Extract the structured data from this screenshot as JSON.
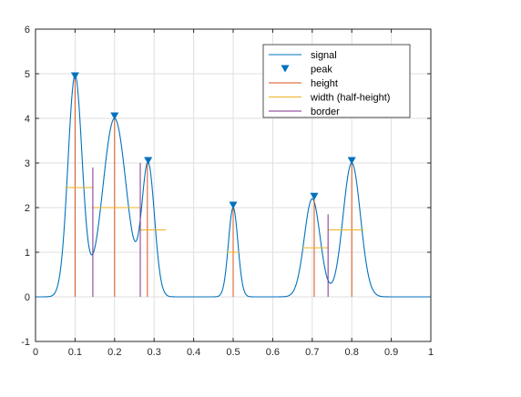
{
  "chart_data": {
    "type": "line",
    "title": "",
    "xlabel": "",
    "ylabel": "",
    "xlim": [
      0,
      1
    ],
    "ylim": [
      -1,
      6
    ],
    "xticks": [
      0,
      0.1,
      0.2,
      0.3,
      0.4,
      0.5,
      0.6,
      0.7,
      0.8,
      0.9,
      1
    ],
    "xtick_labels": [
      "0",
      "0.1",
      "0.2",
      "0.3",
      "0.4",
      "0.5",
      "0.6",
      "0.7",
      "0.8",
      "0.9",
      "1"
    ],
    "yticks": [
      -1,
      0,
      1,
      2,
      3,
      4,
      5,
      6
    ],
    "ytick_labels": [
      "-1",
      "0",
      "1",
      "2",
      "3",
      "4",
      "5",
      "6"
    ],
    "grid": true,
    "legend_position": "top-right",
    "legend": [
      {
        "label": "signal",
        "kind": "line",
        "color": "#0072BD"
      },
      {
        "label": "peak",
        "kind": "marker",
        "color": "#0072BD"
      },
      {
        "label": "height",
        "kind": "line",
        "color": "#D95319"
      },
      {
        "label": "width (half-height)",
        "kind": "line",
        "color": "#EDB120"
      },
      {
        "label": "border",
        "kind": "line",
        "color": "#7E2F8E"
      }
    ],
    "gaussians": [
      {
        "amplitude": 4.95,
        "center": 0.1,
        "sigma": 0.018
      },
      {
        "amplitude": 4.0,
        "center": 0.2,
        "sigma": 0.03
      },
      {
        "amplitude": 2.95,
        "center": 0.285,
        "sigma": 0.016
      },
      {
        "amplitude": 2.0,
        "center": 0.5,
        "sigma": 0.012
      },
      {
        "amplitude": 2.2,
        "center": 0.7,
        "sigma": 0.02
      },
      {
        "amplitude": 3.0,
        "center": 0.8,
        "sigma": 0.022
      }
    ],
    "peaks": [
      {
        "x": 0.1,
        "y": 4.95
      },
      {
        "x": 0.2,
        "y": 4.05
      },
      {
        "x": 0.285,
        "y": 3.05
      },
      {
        "x": 0.5,
        "y": 2.05
      },
      {
        "x": 0.705,
        "y": 2.25
      },
      {
        "x": 0.8,
        "y": 3.05
      }
    ],
    "heights": [
      {
        "x": 0.1,
        "y0": 0,
        "y1": 4.9
      },
      {
        "x": 0.2,
        "y0": 0,
        "y1": 4.0
      },
      {
        "x": 0.283,
        "y0": 0,
        "y1": 3.0
      },
      {
        "x": 0.5,
        "y0": 0,
        "y1": 2.0
      },
      {
        "x": 0.705,
        "y0": 0,
        "y1": 2.2
      },
      {
        "x": 0.8,
        "y0": 0,
        "y1": 3.0
      }
    ],
    "widths": [
      {
        "x0": 0.075,
        "x1": 0.145,
        "y": 2.45
      },
      {
        "x0": 0.145,
        "x1": 0.265,
        "y": 2.0
      },
      {
        "x0": 0.265,
        "x1": 0.33,
        "y": 1.5
      },
      {
        "x0": 0.485,
        "x1": 0.515,
        "y": 1.0
      },
      {
        "x0": 0.675,
        "x1": 0.74,
        "y": 1.1
      },
      {
        "x0": 0.74,
        "x1": 0.83,
        "y": 1.5
      }
    ],
    "borders": [
      {
        "x": 0.145,
        "y0": 0,
        "y1": 2.9
      },
      {
        "x": 0.265,
        "y0": 0,
        "y1": 3.0
      },
      {
        "x": 0.74,
        "y0": 0,
        "y1": 1.85
      }
    ]
  }
}
